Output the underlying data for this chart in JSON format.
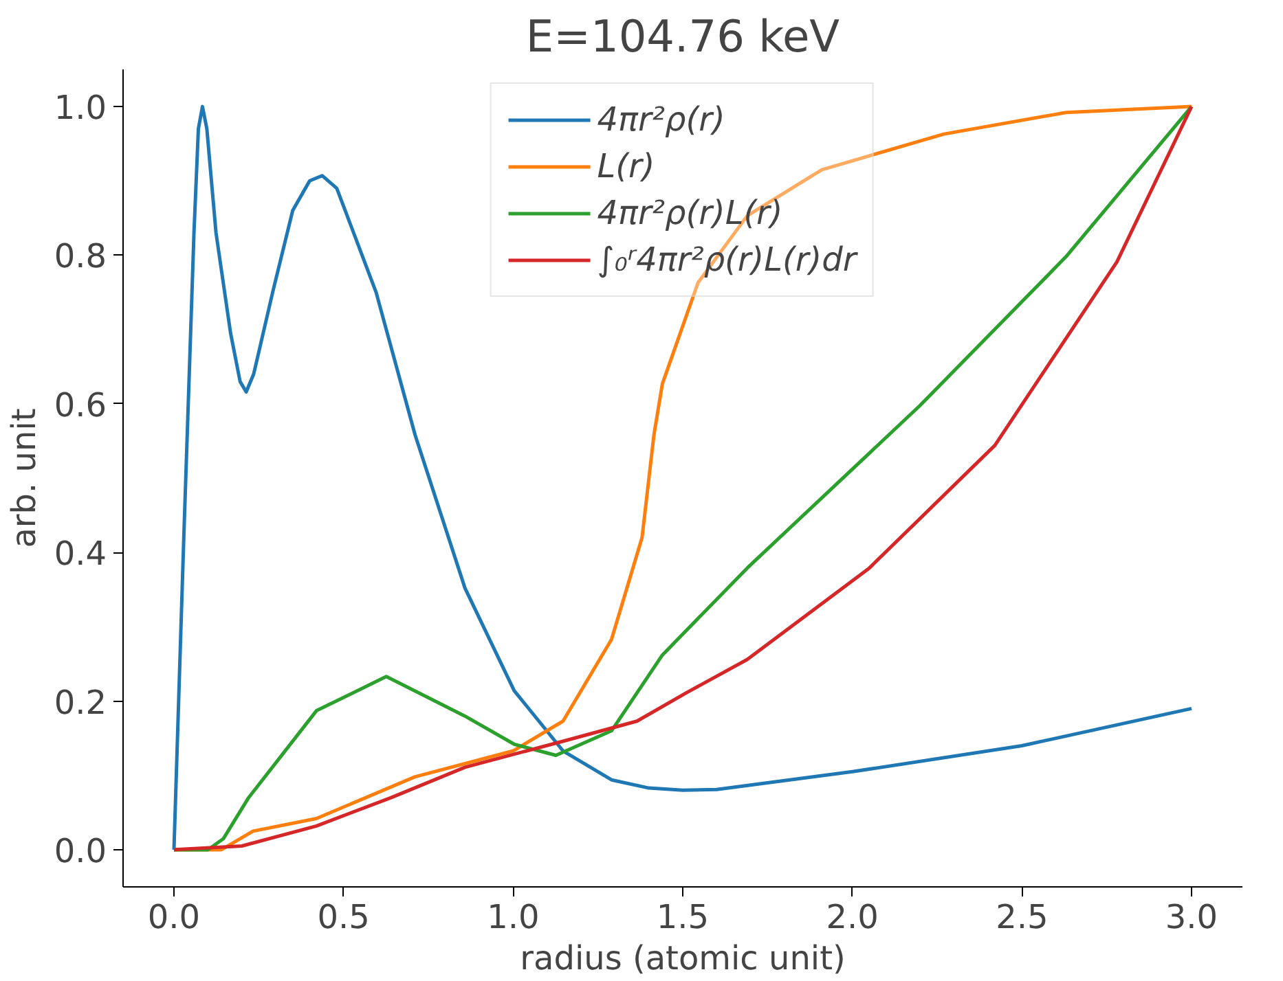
{
  "chart_data": {
    "type": "line",
    "title": "E=104.76 keV",
    "xlabel": "radius (atomic unit)",
    "ylabel": "arb. unit",
    "xlim": [
      -0.15,
      3.15
    ],
    "ylim": [
      -0.05,
      1.05
    ],
    "xticks": [
      {
        "value": 0,
        "label": "0.0"
      },
      {
        "value": 0.5,
        "label": "0.5"
      },
      {
        "value": 1,
        "label": "1.0"
      },
      {
        "value": 1.5,
        "label": "1.5"
      },
      {
        "value": 2,
        "label": "2.0"
      },
      {
        "value": 2.5,
        "label": "2.5"
      },
      {
        "value": 3,
        "label": "3.0"
      }
    ],
    "yticks": [
      {
        "value": 0,
        "label": "0.0"
      },
      {
        "value": 0.2,
        "label": "0.2"
      },
      {
        "value": 0.4,
        "label": "0.4"
      },
      {
        "value": 0.6,
        "label": "0.6"
      },
      {
        "value": 0.8,
        "label": "0.8"
      },
      {
        "value": 1,
        "label": "1.0"
      }
    ],
    "grid": false,
    "legend": "top",
    "line_style": "solid",
    "series": [
      {
        "name": "4πr²ρ(r)",
        "color": "#1f77b4",
        "x": [
          0,
          0.029,
          0.059,
          0.072,
          0.084,
          0.097,
          0.124,
          0.167,
          0.195,
          0.213,
          0.235,
          0.291,
          0.35,
          0.4,
          0.437,
          0.48,
          0.596,
          0.711,
          0.858,
          1.003,
          1.147,
          1.29,
          1.4,
          1.5,
          1.6,
          2.0,
          2.5,
          3.0
        ],
        "values": [
          0,
          0.42,
          0.83,
          0.97,
          1.0,
          0.97,
          0.83,
          0.695,
          0.63,
          0.616,
          0.64,
          0.75,
          0.86,
          0.9,
          0.907,
          0.89,
          0.75,
          0.558,
          0.352,
          0.214,
          0.133,
          0.094,
          0.083,
          0.08,
          0.081,
          0.105,
          0.14,
          0.19
        ]
      },
      {
        "name": "L(r)",
        "color": "#ff7f0e",
        "x": [
          0,
          0.14,
          0.233,
          0.42,
          0.71,
          1.0,
          1.147,
          1.29,
          1.38,
          1.415,
          1.44,
          1.545,
          1.69,
          1.91,
          2.27,
          2.63,
          3.0
        ],
        "values": [
          0,
          0,
          0.025,
          0.042,
          0.098,
          0.133,
          0.173,
          0.283,
          0.42,
          0.558,
          0.627,
          0.763,
          0.853,
          0.915,
          0.963,
          0.992,
          1.0
        ]
      },
      {
        "name": "4πr²ρ(r)L(r)",
        "color": "#2ca02c",
        "x": [
          0,
          0.1,
          0.146,
          0.22,
          0.42,
          0.626,
          0.857,
          1.003,
          1.126,
          1.29,
          1.44,
          1.69,
          2.2,
          2.63,
          3.0
        ],
        "values": [
          0,
          0,
          0.015,
          0.07,
          0.187,
          0.233,
          0.18,
          0.142,
          0.127,
          0.16,
          0.262,
          0.379,
          0.598,
          0.798,
          1.0
        ]
      },
      {
        "name": "∫₀ʳ4πr²ρ(r)L(r)dr",
        "color": "#d62728",
        "x": [
          0,
          0.2,
          0.42,
          0.64,
          0.858,
          1.147,
          1.365,
          1.51,
          1.69,
          2.05,
          2.42,
          2.78,
          3.0
        ],
        "values": [
          0,
          0.005,
          0.032,
          0.07,
          0.111,
          0.146,
          0.173,
          0.211,
          0.256,
          0.379,
          0.544,
          0.791,
          1.0
        ]
      }
    ]
  }
}
